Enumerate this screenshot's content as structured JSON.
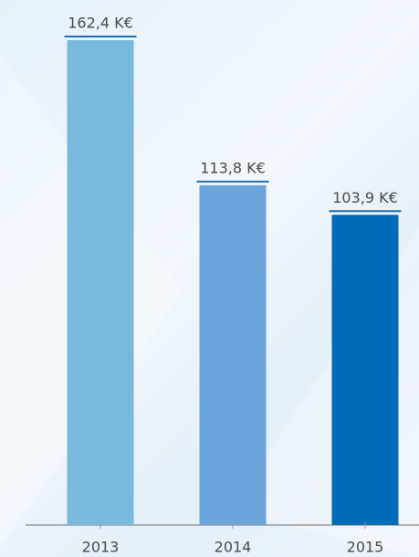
{
  "chart_data": {
    "type": "bar",
    "categories": [
      "2013",
      "2014",
      "2015"
    ],
    "values": [
      162.4,
      113.8,
      103.9
    ],
    "value_labels": [
      "162,4 K€",
      "113,8 K€",
      "103,9 K€"
    ],
    "colors": [
      "#7ab9de",
      "#6aa4da",
      "#006cb7"
    ]
  }
}
